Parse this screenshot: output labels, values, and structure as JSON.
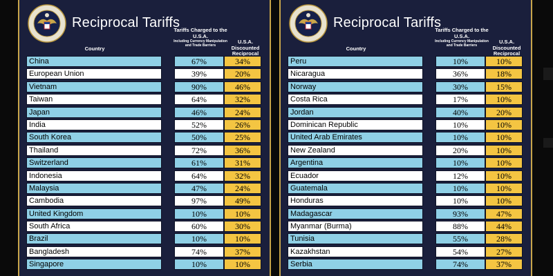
{
  "title": "Reciprocal Tariffs",
  "headers": {
    "country": "Country",
    "charged_main": "Tariffs Charged to the U.S.A.",
    "charged_sub": "Including Currency Manipulation and Trade Barriers",
    "discounted": "U.S.A. Discounted Reciprocal Tariffs"
  },
  "colors": {
    "panel": "#1a1f3c",
    "row_blue": "#8fd0e6",
    "row_white": "#ffffff",
    "discount": "#f4c542",
    "border_gold": "#c9a64a"
  },
  "seal_icon": "presidential-seal-icon",
  "left_rows": [
    {
      "country": "China",
      "charged": "67%",
      "discounted": "34%"
    },
    {
      "country": "European Union",
      "charged": "39%",
      "discounted": "20%"
    },
    {
      "country": "Vietnam",
      "charged": "90%",
      "discounted": "46%"
    },
    {
      "country": "Taiwan",
      "charged": "64%",
      "discounted": "32%"
    },
    {
      "country": "Japan",
      "charged": "46%",
      "discounted": "24%"
    },
    {
      "country": "India",
      "charged": "52%",
      "discounted": "26%"
    },
    {
      "country": "South Korea",
      "charged": "50%",
      "discounted": "25%"
    },
    {
      "country": "Thailand",
      "charged": "72%",
      "discounted": "36%"
    },
    {
      "country": "Switzerland",
      "charged": "61%",
      "discounted": "31%"
    },
    {
      "country": "Indonesia",
      "charged": "64%",
      "discounted": "32%"
    },
    {
      "country": "Malaysia",
      "charged": "47%",
      "discounted": "24%"
    },
    {
      "country": "Cambodia",
      "charged": "97%",
      "discounted": "49%"
    },
    {
      "country": "United Kingdom",
      "charged": "10%",
      "discounted": "10%"
    },
    {
      "country": "South Africa",
      "charged": "60%",
      "discounted": "30%"
    },
    {
      "country": "Brazil",
      "charged": "10%",
      "discounted": "10%"
    },
    {
      "country": "Bangladesh",
      "charged": "74%",
      "discounted": "37%"
    },
    {
      "country": "Singapore",
      "charged": "10%",
      "discounted": "10%"
    }
  ],
  "right_rows": [
    {
      "country": "Peru",
      "charged": "10%",
      "discounted": "10%"
    },
    {
      "country": "Nicaragua",
      "charged": "36%",
      "discounted": "18%"
    },
    {
      "country": "Norway",
      "charged": "30%",
      "discounted": "15%"
    },
    {
      "country": "Costa Rica",
      "charged": "17%",
      "discounted": "10%"
    },
    {
      "country": "Jordan",
      "charged": "40%",
      "discounted": "20%"
    },
    {
      "country": "Dominican Republic",
      "charged": "10%",
      "discounted": "10%"
    },
    {
      "country": "United Arab Emirates",
      "charged": "10%",
      "discounted": "10%"
    },
    {
      "country": "New Zealand",
      "charged": "20%",
      "discounted": "10%"
    },
    {
      "country": "Argentina",
      "charged": "10%",
      "discounted": "10%"
    },
    {
      "country": "Ecuador",
      "charged": "12%",
      "discounted": "10%"
    },
    {
      "country": "Guatemala",
      "charged": "10%",
      "discounted": "10%"
    },
    {
      "country": "Honduras",
      "charged": "10%",
      "discounted": "10%"
    },
    {
      "country": "Madagascar",
      "charged": "93%",
      "discounted": "47%"
    },
    {
      "country": "Myanmar (Burma)",
      "charged": "88%",
      "discounted": "44%"
    },
    {
      "country": "Tunisia",
      "charged": "55%",
      "discounted": "28%"
    },
    {
      "country": "Kazakhstan",
      "charged": "54%",
      "discounted": "27%"
    },
    {
      "country": "Serbia",
      "charged": "74%",
      "discounted": "37%"
    }
  ]
}
